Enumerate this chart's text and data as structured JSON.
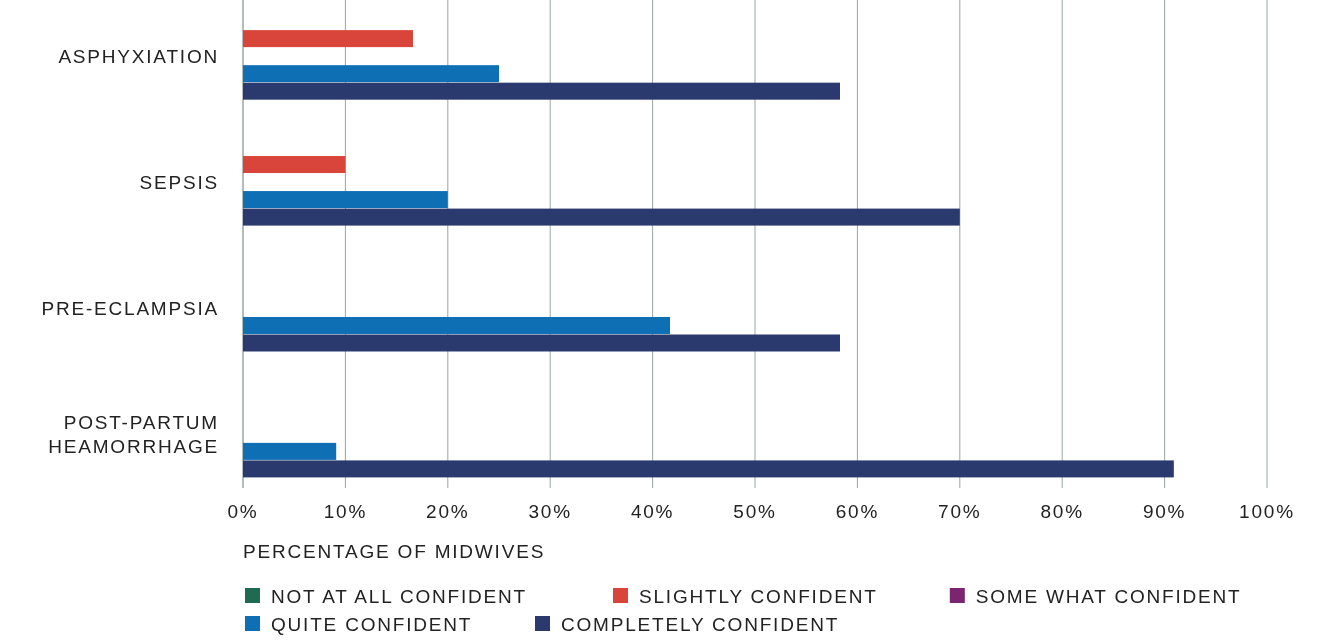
{
  "chart_data": {
    "type": "bar",
    "orientation": "horizontal",
    "xlabel": "PERCENTAGE OF MIDWIVES",
    "categories": [
      "ASPHYXIATION",
      "SEPSIS",
      "PRE-ECLAMPSIA",
      "POST-PARTUM HEAMORRHAGE"
    ],
    "series": [
      {
        "name": "NOT AT ALL CONFIDENT",
        "color": "#1e6b52",
        "values": [
          0,
          0,
          0,
          0
        ]
      },
      {
        "name": "SLIGHTLY CONFIDENT",
        "color": "#d9453a",
        "values": [
          16.6,
          10,
          0,
          0
        ]
      },
      {
        "name": "SOME WHAT CONFIDENT",
        "color": "#7b2470",
        "values": [
          0,
          0,
          0,
          0
        ]
      },
      {
        "name": "QUITE CONFIDENT",
        "color": "#0f6fb5",
        "values": [
          25,
          20,
          41.7,
          9.1
        ]
      },
      {
        "name": "COMPLETELY CONFIDENT",
        "color": "#2a3a6e",
        "values": [
          58.3,
          70,
          58.3,
          90.9
        ]
      }
    ],
    "xlim": [
      0,
      100
    ],
    "xticks": [
      {
        "value": 0,
        "label": "0%"
      },
      {
        "value": 10,
        "label": "10%"
      },
      {
        "value": 20,
        "label": "20%"
      },
      {
        "value": 30,
        "label": "30%"
      },
      {
        "value": 40,
        "label": "40%"
      },
      {
        "value": 50,
        "label": "50%"
      },
      {
        "value": 60,
        "label": "60%"
      },
      {
        "value": 70,
        "label": "70%"
      },
      {
        "value": 80,
        "label": "80%"
      },
      {
        "value": 90,
        "label": "90%"
      },
      {
        "value": 100,
        "label": "100%"
      }
    ],
    "grid": "x",
    "legend": "bottom"
  }
}
